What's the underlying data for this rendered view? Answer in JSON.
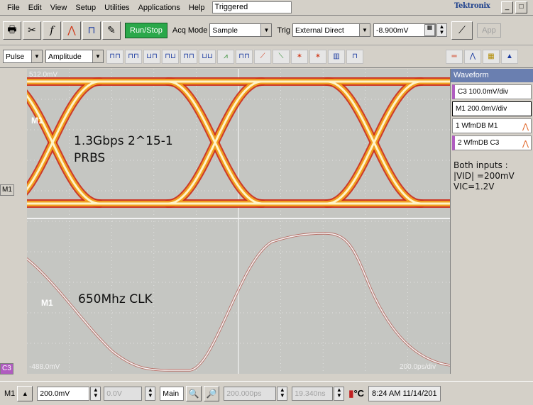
{
  "menu": {
    "items": [
      "File",
      "Edit",
      "View",
      "Setup",
      "Utilities",
      "Applications",
      "Help"
    ],
    "status": "Triggered",
    "brand": "Tektronix"
  },
  "toolbar1": {
    "run_stop": "Run/Stop",
    "acq_mode_label": "Acq Mode",
    "acq_mode_value": "Sample",
    "trig_label": "Trig",
    "trig_value": "External Direct",
    "trig_level": "-8.900mV",
    "app_label": "App"
  },
  "toolbar2": {
    "meas_type": "Pulse",
    "meas_param": "Amplitude"
  },
  "screen": {
    "top_scale": "512.0mV",
    "bottom_scale": "-488.0mV",
    "timebase": "200.0ps/div",
    "m1_label": "M1",
    "annotation_eye_line1": "1.3Gbps 2^15-1",
    "annotation_eye_line2": "PRBS",
    "annotation_clk": "650Mhz CLK",
    "colors": {
      "eye_outer": "#cc2a1a",
      "eye_mid": "#f0a020",
      "eye_core": "#fff4c8",
      "clk": "#f4f4f4",
      "grid": "#ededed"
    }
  },
  "left_markers": {
    "m1": "M1",
    "c3": "C3"
  },
  "right_panel": {
    "title": "Waveform",
    "entries": [
      "C3 100.0mV/div",
      "M1 200.0mV/div",
      "1 WfmDB M1",
      "2 WfmDB C3"
    ],
    "note": "Both inputs :\n|VID| =200mV\nVIC=1.2V"
  },
  "bottom": {
    "source": "M1",
    "scale": "200.0mV",
    "offset": "0.0V",
    "main": "Main",
    "position": "200.000ps",
    "delay": "19.340ns",
    "temp_unit": "°C",
    "clock": "8:24 AM 11/14/201"
  }
}
